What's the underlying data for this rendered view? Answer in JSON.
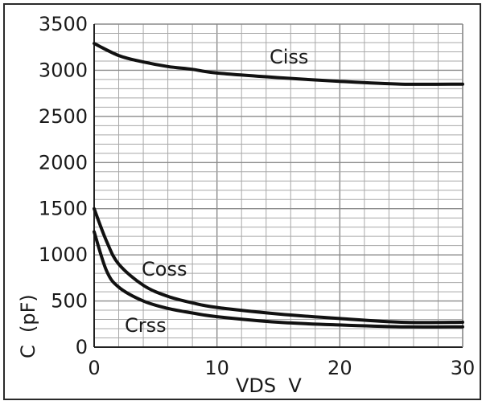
{
  "chart_data": {
    "type": "line",
    "xlabel": "VDS  V",
    "ylabel": "C  (pF)",
    "xlim": [
      0,
      30
    ],
    "ylim": [
      0,
      3500
    ],
    "x_ticks": [
      "0",
      "10",
      "20",
      "30"
    ],
    "y_ticks": [
      "0",
      "500",
      "1000",
      "1500",
      "2000",
      "2500",
      "3000",
      "3500"
    ],
    "grid": true,
    "series": [
      {
        "name": "Ciss",
        "x": [
          0,
          2,
          4,
          6,
          8,
          10,
          15,
          20,
          25,
          30
        ],
        "values": [
          3290,
          3160,
          3090,
          3040,
          3010,
          2970,
          2920,
          2880,
          2850,
          2850
        ]
      },
      {
        "name": "Coss",
        "x": [
          0,
          1,
          2,
          4,
          6,
          8,
          10,
          15,
          20,
          25,
          30
        ],
        "values": [
          1500,
          1150,
          900,
          670,
          550,
          480,
          430,
          360,
          310,
          270,
          270
        ]
      },
      {
        "name": "Crss",
        "x": [
          0,
          1,
          2,
          4,
          6,
          8,
          10,
          15,
          20,
          25,
          30
        ],
        "values": [
          1250,
          830,
          650,
          500,
          420,
          370,
          330,
          270,
          240,
          220,
          220
        ]
      }
    ]
  }
}
